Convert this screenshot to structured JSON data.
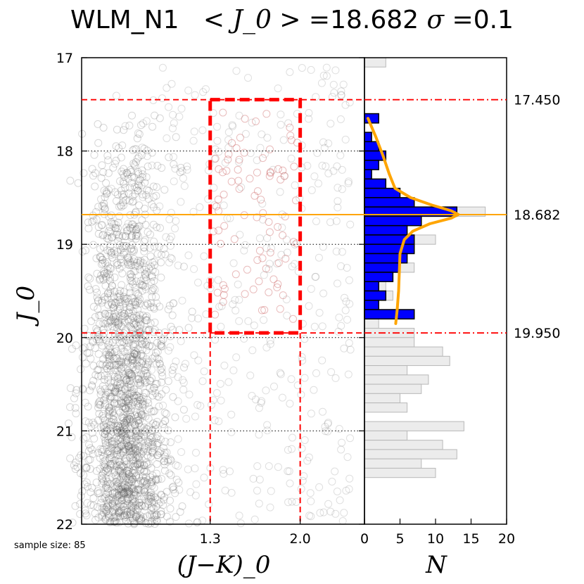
{
  "title": {
    "name": "WLM_N1",
    "mean_label": "< J_0 > =",
    "mean_value": "18.682",
    "sigma_label": "σ =",
    "sigma_value": "0.1"
  },
  "sample_size_text": "sample size: 85",
  "chart_data": [
    {
      "type": "scatter",
      "panel": "color-magnitude diagram",
      "xlabel": "(J−K)_0",
      "ylabel": "J_0",
      "xlim": [
        0.3,
        2.5
      ],
      "ylim": [
        22,
        17
      ],
      "y_inverted": true,
      "x_tick_labels": [
        {
          "value": 1.3,
          "label": "1.3"
        },
        {
          "value": 2.0,
          "label": "2.0"
        }
      ],
      "y_ticks": [
        17,
        18,
        19,
        20,
        21,
        22
      ],
      "y_tick_labels": [
        "17",
        "18",
        "19",
        "20",
        "21",
        "22"
      ],
      "dotted_gridlines_y": [
        18,
        19,
        20,
        21
      ],
      "selection_box": {
        "x": [
          1.3,
          2.0
        ],
        "y": [
          17.45,
          19.95
        ]
      },
      "vertical_dashed_lines_x": [
        1.3,
        2.0
      ],
      "points": "dense cloud of faint grey open circles concentrated at (J−K)_0 ≈ 0.3–1.0 with sparser scatter to redder colors; 85 faint red circles inside the selection box"
    },
    {
      "type": "bar",
      "orientation": "horizontal",
      "panel": "luminosity function",
      "xlabel": "N",
      "xlim": [
        0,
        20
      ],
      "x_ticks": [
        0,
        5,
        10,
        15,
        20
      ],
      "x_tick_labels": [
        "0",
        "5",
        "10",
        "15",
        "20"
      ],
      "bin_width": 0.1,
      "bin_starts": [
        17.0,
        17.1,
        17.2,
        17.3,
        17.4,
        17.5,
        17.6,
        17.7,
        17.8,
        17.9,
        18.0,
        18.1,
        18.2,
        18.3,
        18.4,
        18.5,
        18.6,
        18.7,
        18.8,
        18.9,
        19.0,
        19.1,
        19.2,
        19.3,
        19.4,
        19.5,
        19.6,
        19.7,
        19.8,
        19.9,
        20.0,
        20.1,
        20.2,
        20.3,
        20.4,
        20.5,
        20.6,
        20.7,
        20.8,
        20.9,
        21.0,
        21.1,
        21.2,
        21.3,
        21.4,
        21.5,
        21.6,
        21.7,
        21.8,
        21.9
      ],
      "series": [
        {
          "name": "all stars (grey)",
          "values": [
            3,
            0,
            0,
            0,
            0,
            0,
            2,
            0,
            1,
            2,
            3,
            2,
            1,
            3,
            5,
            7,
            17,
            8,
            6,
            10,
            7,
            6,
            7,
            4,
            3,
            4,
            2,
            7,
            2,
            7,
            7,
            11,
            12,
            6,
            9,
            8,
            5,
            6,
            0,
            14,
            6,
            11,
            13,
            8,
            10,
            0,
            0,
            0,
            0,
            0
          ]
        },
        {
          "name": "selected (blue)",
          "values": [
            0,
            0,
            0,
            0,
            0,
            0,
            2,
            0,
            1,
            2,
            3,
            2,
            1,
            3,
            5,
            7,
            13,
            8,
            6,
            7,
            7,
            6,
            5,
            4,
            2,
            3,
            2,
            7,
            0,
            0,
            0,
            0,
            0,
            0,
            0,
            0,
            0,
            0,
            0,
            0,
            0,
            0,
            0,
            0,
            0,
            0,
            0,
            0,
            0,
            0
          ]
        }
      ],
      "fit_curve": {
        "color": "#ffa500",
        "points": [
          {
            "J": 17.65,
            "N": 0.5
          },
          {
            "J": 17.85,
            "N": 1.6
          },
          {
            "J": 18.05,
            "N": 2.6
          },
          {
            "J": 18.25,
            "N": 3.5
          },
          {
            "J": 18.4,
            "N": 4.3
          },
          {
            "J": 18.5,
            "N": 6.5
          },
          {
            "J": 18.58,
            "N": 9.5
          },
          {
            "J": 18.64,
            "N": 12.2
          },
          {
            "J": 18.68,
            "N": 13.2
          },
          {
            "J": 18.72,
            "N": 12.2
          },
          {
            "J": 18.78,
            "N": 9.2
          },
          {
            "J": 18.86,
            "N": 6.8
          },
          {
            "J": 18.95,
            "N": 5.6
          },
          {
            "J": 19.1,
            "N": 5.0
          },
          {
            "J": 19.3,
            "N": 4.9
          },
          {
            "J": 19.5,
            "N": 4.8
          },
          {
            "J": 19.7,
            "N": 4.6
          },
          {
            "J": 19.85,
            "N": 4.4
          }
        ]
      }
    }
  ],
  "markers": {
    "upper_cut": {
      "value": 17.45,
      "label": "17.450"
    },
    "trgb": {
      "value": 18.682,
      "label": "18.682"
    },
    "lower_cut": {
      "value": 19.95,
      "label": "19.950"
    }
  },
  "colors": {
    "red": "#ff0000",
    "orange": "#ffa500",
    "blue": "#0000ff",
    "grey_bar": "#ececec",
    "grey_bar_edge": "#b8b8b8"
  }
}
